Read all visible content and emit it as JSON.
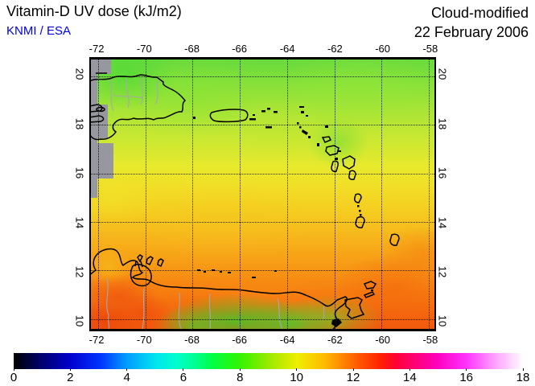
{
  "header": {
    "title": "Vitamin-D UV dose (kJ/m2)",
    "credit": "KNMI / ESA",
    "mode": "Cloud-modified",
    "date": "22 February 2006"
  },
  "colors": {
    "credit_blue": "#0000dd",
    "no_data_gray": "#97979f",
    "coastline_black": "#000000",
    "inland_border_gray": "#a8a8a8",
    "grid_black_dotted": "#000000"
  },
  "map": {
    "region": "Caribbean Sea (Hispaniola, Puerto Rico, Lesser Antilles, Trinidad, Venezuela coast)",
    "axes": {
      "lon": [
        {
          "label": "-72",
          "pct": 2.1
        },
        {
          "label": "-70",
          "pct": 15.85
        },
        {
          "label": "-68",
          "pct": 29.6
        },
        {
          "label": "-66",
          "pct": 43.3
        },
        {
          "label": "-64",
          "pct": 57.1
        },
        {
          "label": "-62",
          "pct": 70.85
        },
        {
          "label": "-60",
          "pct": 84.6
        },
        {
          "label": "-58",
          "pct": 98.35
        }
      ],
      "lat": [
        {
          "label": "20",
          "pct": 6.3
        },
        {
          "label": "18",
          "pct": 24.3
        },
        {
          "label": "16",
          "pct": 42.3
        },
        {
          "label": "14",
          "pct": 60.3
        },
        {
          "label": "12",
          "pct": 78.3
        },
        {
          "label": "10",
          "pct": 96.3
        }
      ]
    },
    "features": [
      "hispaniola",
      "gonave-island",
      "tortuga-island",
      "puerto-rico",
      "mona-island",
      "virgin-islands",
      "lesser-antilles-arc",
      "guadeloupe",
      "dominica",
      "martinique",
      "st-lucia",
      "st-vincent",
      "grenada",
      "barbados",
      "isla-margarita",
      "aruba-curacao-bonaire",
      "los-roques",
      "tobago",
      "trinidad",
      "guajira-peninsula",
      "lake-maracaibo",
      "venezuela-coast",
      "orinoco-delta"
    ]
  },
  "colorbar": {
    "units": "kJ/m2",
    "min": 0,
    "max": 18,
    "labels": [
      {
        "label": "0",
        "pct": 0
      },
      {
        "label": "2",
        "pct": 11.11
      },
      {
        "label": "4",
        "pct": 22.22
      },
      {
        "label": "6",
        "pct": 33.33
      },
      {
        "label": "8",
        "pct": 44.44
      },
      {
        "label": "10",
        "pct": 55.56
      },
      {
        "label": "12",
        "pct": 66.67
      },
      {
        "label": "14",
        "pct": 77.78
      },
      {
        "label": "16",
        "pct": 88.89
      },
      {
        "label": "18",
        "pct": 100
      }
    ],
    "gradient": [
      {
        "value": 0,
        "color": "#000000"
      },
      {
        "value": 1,
        "color": "#000066"
      },
      {
        "value": 2,
        "color": "#0000cc"
      },
      {
        "value": 3,
        "color": "#0033ff"
      },
      {
        "value": 4,
        "color": "#0099ff"
      },
      {
        "value": 5,
        "color": "#00e6ee"
      },
      {
        "value": 6,
        "color": "#00ffcc"
      },
      {
        "value": 7,
        "color": "#00ff44"
      },
      {
        "value": 8,
        "color": "#33f400"
      },
      {
        "value": 9,
        "color": "#99e900"
      },
      {
        "value": 10,
        "color": "#eeee00"
      },
      {
        "value": 11,
        "color": "#ffbb00"
      },
      {
        "value": 12,
        "color": "#ff6600"
      },
      {
        "value": 13,
        "color": "#ff1100"
      },
      {
        "value": 14,
        "color": "#ff0066"
      },
      {
        "value": 15,
        "color": "#ff00bb"
      },
      {
        "value": 16,
        "color": "#ff33ff"
      },
      {
        "value": 17,
        "color": "#ff99ff"
      },
      {
        "value": 18,
        "color": "#ffffff"
      }
    ]
  },
  "chart_data": {
    "type": "heatmap",
    "title": "Vitamin-D UV dose (kJ/m2)",
    "subtitle": "Cloud-modified, 22 February 2006, KNMI / ESA",
    "x_axis": {
      "label": "longitude",
      "ticks": [
        -72,
        -70,
        -68,
        -66,
        -64,
        -62,
        -60,
        -58
      ],
      "range": [
        -72.3,
        -57.8
      ]
    },
    "y_axis": {
      "label": "latitude",
      "ticks": [
        20,
        18,
        16,
        14,
        12,
        10
      ],
      "range": [
        9.4,
        20.6
      ]
    },
    "color_scale": {
      "range": [
        0,
        18
      ],
      "ticks": [
        0,
        2,
        4,
        6,
        8,
        10,
        12,
        14,
        16,
        18
      ],
      "units": "kJ/m2"
    },
    "approx_zonal_dose": {
      "lat": [
        20,
        18,
        16,
        14,
        12,
        10
      ],
      "dose_kj_m2": [
        8.2,
        9.0,
        9.8,
        10.6,
        11.4,
        12.2
      ]
    },
    "anomalies": [
      {
        "where": "gray strip along west edge and NW corner (no data)",
        "dose": null
      },
      {
        "where": "Venezuela interior along south edge (cloud-reduced)",
        "dose": 7.5
      },
      {
        "where": "Guajira / NW corner of South America patches",
        "dose": 13.0
      },
      {
        "where": "SE ocean toward Trinidad",
        "dose": 12.0
      }
    ],
    "legend_position": "bottom-colorbar",
    "grid": "dotted, every 2 degrees"
  }
}
